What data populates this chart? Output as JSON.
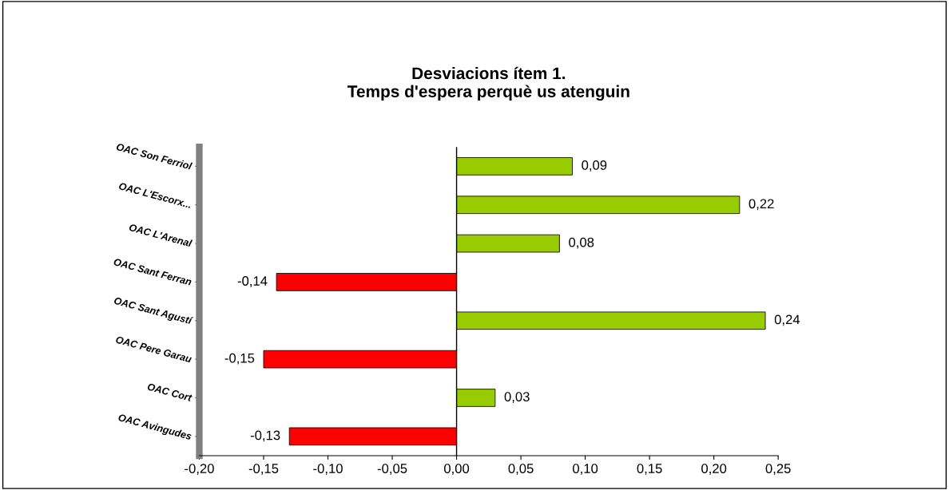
{
  "chart_data": {
    "type": "bar",
    "orientation": "horizontal",
    "title": "Desviacions ítem 1.\nTemps d'espera perquè us atenguin",
    "categories": [
      "OAC Son Ferriol",
      "OAC L'Escorx...",
      "OAC L'Arenal",
      "OAC Sant Ferran",
      "OAC Sant Agustí",
      "OAC Pere Garau",
      "OAC Cort",
      "OAC Avingudes"
    ],
    "values": [
      0.09,
      0.22,
      0.08,
      -0.14,
      0.24,
      -0.15,
      0.03,
      -0.13
    ],
    "colors": [
      "#99cc00",
      "#99cc00",
      "#99cc00",
      "#ff0000",
      "#99cc00",
      "#ff0000",
      "#99cc00",
      "#ff0000"
    ],
    "value_labels": [
      "0,09",
      "0,22",
      "0,08",
      "-0,14",
      "0,24",
      "-0,15",
      "0,03",
      "-0,13"
    ],
    "xlim": [
      -0.2,
      0.25
    ],
    "xticks": [
      {
        "value": -0.2,
        "label": "-0,20"
      },
      {
        "value": -0.15,
        "label": "-0,15"
      },
      {
        "value": -0.1,
        "label": "-0,10"
      },
      {
        "value": -0.05,
        "label": "-0,05"
      },
      {
        "value": 0,
        "label": "0,00"
      },
      {
        "value": 0.05,
        "label": "0,05"
      },
      {
        "value": 0.1,
        "label": "0,10"
      },
      {
        "value": 0.15,
        "label": "0,15"
      },
      {
        "value": 0.2,
        "label": "0,20"
      },
      {
        "value": 0.25,
        "label": "0,25"
      }
    ],
    "ref_lines": [
      {
        "axis": "x",
        "value": 0,
        "label": null,
        "color": "#000000"
      }
    ],
    "grid": false,
    "legend": false
  }
}
